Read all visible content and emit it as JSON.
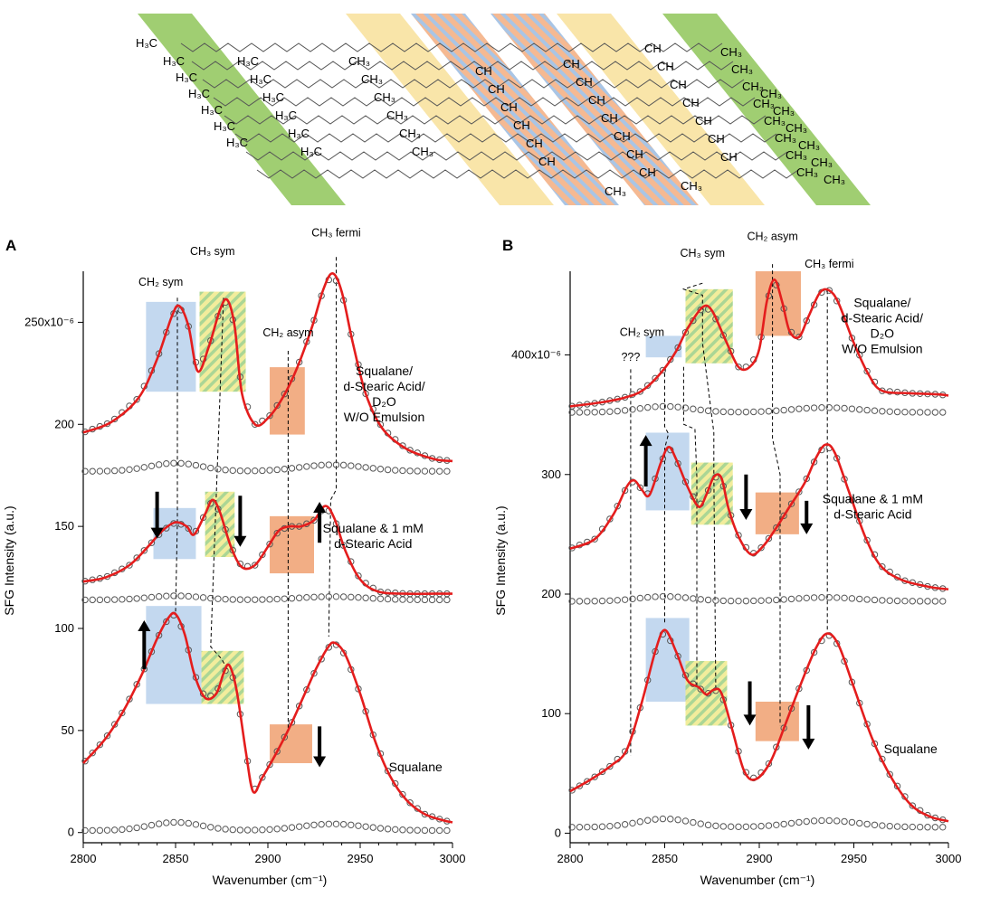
{
  "molecule": {
    "labels": {
      "h3c": "H₃C",
      "ch": "CH",
      "ch3": "CH₃"
    }
  },
  "colors": {
    "green": "#9bcb6a",
    "yellow": "#f9e4a4",
    "stripe_a": "#f4b58c",
    "stripe_b": "#a4c2e4",
    "blue_box": "#b8d1ec",
    "orange_box": "#f0a070",
    "hatch_yellow": "#f0ea8a",
    "hatch_green": "#9ccf82",
    "curve": "#e41d1d",
    "points": "#555555"
  },
  "chart_data": [
    {
      "panel": "A",
      "type": "line",
      "xlabel": "Wavenumber (cm⁻¹)",
      "ylabel": "SFG Intensity (a.u.)",
      "xlim": [
        2800,
        3000
      ],
      "ylim": [
        -5,
        275
      ],
      "x_ticks": [
        "2800",
        "2850",
        "2900",
        "2950",
        "3000"
      ],
      "y_ticks": [
        {
          "value": 0,
          "label": "0"
        },
        {
          "value": 50,
          "label": "50"
        },
        {
          "value": 100,
          "label": "100"
        },
        {
          "value": 150,
          "label": "150"
        },
        {
          "value": 200,
          "label": "200"
        },
        {
          "value": 250,
          "label": "250x10⁻⁶"
        }
      ],
      "band_labels": [
        {
          "text": "CH₂ sym",
          "x": 2842,
          "y": 268
        },
        {
          "text": "CH₃ sym",
          "x": 2870,
          "y": 283
        },
        {
          "text": "CH₂ asym",
          "x": 2911,
          "y": 243
        },
        {
          "text": "CH₃ fermi",
          "x": 2937,
          "y": 292
        }
      ],
      "series": [
        {
          "name": "Squalane/ d-Stearic Acid/ D2O W/O Emulsion",
          "label_lines": [
            "Squalane/",
            "d-Stearic Acid/",
            "D₂O",
            "W/O Emulsion"
          ],
          "label_pos": [
            2963,
            224
          ],
          "baseline": 177,
          "baseline_amp": 4,
          "curve": [
            [
              2800,
              196
            ],
            [
              2815,
              201
            ],
            [
              2830,
              213
            ],
            [
              2840,
              232
            ],
            [
              2848,
              253
            ],
            [
              2852,
              258
            ],
            [
              2857,
              248
            ],
            [
              2862,
              226
            ],
            [
              2868,
              238
            ],
            [
              2874,
              256
            ],
            [
              2878,
              261
            ],
            [
              2882,
              248
            ],
            [
              2886,
              215
            ],
            [
              2893,
              200
            ],
            [
              2900,
              203
            ],
            [
              2908,
              213
            ],
            [
              2916,
              228
            ],
            [
              2924,
              248
            ],
            [
              2930,
              266
            ],
            [
              2935,
              274
            ],
            [
              2940,
              265
            ],
            [
              2946,
              240
            ],
            [
              2953,
              215
            ],
            [
              2962,
              198
            ],
            [
              2975,
              188
            ],
            [
              2990,
              183
            ],
            [
              3000,
              182
            ]
          ]
        },
        {
          "name": "Squalane & 1 mM d-Stearic Acid",
          "label_lines": [
            "Squalane & 1 mM",
            "d-Stearic Acid"
          ],
          "label_pos": [
            2957,
            147
          ],
          "baseline": 114,
          "baseline_amp": 2,
          "curve": [
            [
              2800,
              123
            ],
            [
              2812,
              125
            ],
            [
              2825,
              131
            ],
            [
              2835,
              140
            ],
            [
              2843,
              148
            ],
            [
              2850,
              152
            ],
            [
              2856,
              150
            ],
            [
              2860,
              146
            ],
            [
              2866,
              156
            ],
            [
              2870,
              163
            ],
            [
              2874,
              157
            ],
            [
              2880,
              140
            ],
            [
              2886,
              130
            ],
            [
              2893,
              131
            ],
            [
              2900,
              140
            ],
            [
              2906,
              148
            ],
            [
              2912,
              150
            ],
            [
              2918,
              150
            ],
            [
              2925,
              153
            ],
            [
              2931,
              160
            ],
            [
              2936,
              154
            ],
            [
              2942,
              138
            ],
            [
              2950,
              124
            ],
            [
              2960,
              118
            ],
            [
              2975,
              117
            ],
            [
              2990,
              117
            ],
            [
              3000,
              117
            ]
          ]
        },
        {
          "name": "Squalane",
          "label_lines": [
            "Squalane"
          ],
          "label_pos": [
            2980,
            30
          ],
          "baseline": 1,
          "baseline_amp": 4,
          "curve": [
            [
              2800,
              34
            ],
            [
              2812,
              46
            ],
            [
              2822,
              60
            ],
            [
              2832,
              78
            ],
            [
              2840,
              95
            ],
            [
              2846,
              105
            ],
            [
              2850,
              107
            ],
            [
              2855,
              97
            ],
            [
              2860,
              78
            ],
            [
              2866,
              66
            ],
            [
              2872,
              68
            ],
            [
              2876,
              78
            ],
            [
              2879,
              82
            ],
            [
              2883,
              70
            ],
            [
              2888,
              40
            ],
            [
              2892,
              20
            ],
            [
              2897,
              27
            ],
            [
              2904,
              38
            ],
            [
              2912,
              52
            ],
            [
              2920,
              68
            ],
            [
              2926,
              80
            ],
            [
              2932,
              90
            ],
            [
              2936,
              93
            ],
            [
              2942,
              87
            ],
            [
              2950,
              68
            ],
            [
              2958,
              45
            ],
            [
              2966,
              28
            ],
            [
              2975,
              16
            ],
            [
              2985,
              9
            ],
            [
              2995,
              6
            ],
            [
              3000,
              5
            ]
          ]
        }
      ]
    },
    {
      "panel": "B",
      "type": "line",
      "xlabel": "Wavenumber (cm⁻¹)",
      "ylabel": "SFG Intensity (a.u.)",
      "xlim": [
        2800,
        3000
      ],
      "ylim": [
        -8,
        470
      ],
      "x_ticks": [
        "2800",
        "2850",
        "2900",
        "2950",
        "3000"
      ],
      "y_ticks": [
        {
          "value": 0,
          "label": "0"
        },
        {
          "value": 100,
          "label": "100"
        },
        {
          "value": 200,
          "label": "200"
        },
        {
          "value": 300,
          "label": "300"
        },
        {
          "value": 400,
          "label": "400x10⁻⁶"
        }
      ],
      "band_labels": [
        {
          "text": "???",
          "x": 2832,
          "y": 395
        },
        {
          "text": "CH₂ sym",
          "x": 2838,
          "y": 416
        },
        {
          "text": "CH₃ sym",
          "x": 2870,
          "y": 482
        },
        {
          "text": "CH₂ asym",
          "x": 2907,
          "y": 496
        },
        {
          "text": "CH₃ fermi",
          "x": 2937,
          "y": 473
        }
      ],
      "series": [
        {
          "name": "Squalane/ d-Stearic Acid/ D2O W/O Emulsion",
          "label_lines": [
            "Squalane/",
            "d-Stearic Acid/",
            "D₂O",
            "W/O Emulsion"
          ],
          "label_pos": [
            2965,
            440
          ],
          "baseline": 352,
          "baseline_amp": 5,
          "curve": [
            [
              2800,
              357
            ],
            [
              2815,
              360
            ],
            [
              2828,
              364
            ],
            [
              2838,
              370
            ],
            [
              2848,
              385
            ],
            [
              2856,
              403
            ],
            [
              2862,
              422
            ],
            [
              2870,
              440
            ],
            [
              2875,
              437
            ],
            [
              2882,
              413
            ],
            [
              2889,
              390
            ],
            [
              2895,
              390
            ],
            [
              2900,
              405
            ],
            [
              2904,
              445
            ],
            [
              2908,
              463
            ],
            [
              2912,
              445
            ],
            [
              2916,
              420
            ],
            [
              2921,
              415
            ],
            [
              2926,
              432
            ],
            [
              2932,
              452
            ],
            [
              2937,
              454
            ],
            [
              2942,
              443
            ],
            [
              2950,
              410
            ],
            [
              2958,
              383
            ],
            [
              2965,
              370
            ],
            [
              2980,
              368
            ],
            [
              2995,
              367
            ],
            [
              3000,
              366
            ]
          ]
        },
        {
          "name": "Squalane & 1 mM d-Stearic Acid",
          "label_lines": [
            "Squalane & 1 mM",
            "d-Stearic Acid"
          ],
          "label_pos": [
            2960,
            276
          ],
          "baseline": 194,
          "baseline_amp": 4,
          "curve": [
            [
              2800,
              238
            ],
            [
              2813,
              246
            ],
            [
              2823,
              267
            ],
            [
              2830,
              290
            ],
            [
              2834,
              295
            ],
            [
              2838,
              287
            ],
            [
              2842,
              283
            ],
            [
              2848,
              310
            ],
            [
              2852,
              323
            ],
            [
              2856,
              313
            ],
            [
              2862,
              290
            ],
            [
              2868,
              273
            ],
            [
              2872,
              283
            ],
            [
              2876,
              298
            ],
            [
              2880,
              297
            ],
            [
              2884,
              270
            ],
            [
              2890,
              245
            ],
            [
              2896,
              233
            ],
            [
              2902,
              240
            ],
            [
              2908,
              253
            ],
            [
              2916,
              273
            ],
            [
              2924,
              293
            ],
            [
              2930,
              314
            ],
            [
              2935,
              325
            ],
            [
              2940,
              318
            ],
            [
              2948,
              283
            ],
            [
              2956,
              248
            ],
            [
              2964,
              224
            ],
            [
              2975,
              212
            ],
            [
              2990,
              206
            ],
            [
              3000,
              204
            ]
          ]
        },
        {
          "name": "Squalane",
          "label_lines": [
            "Squalane"
          ],
          "label_pos": [
            2980,
            67
          ],
          "baseline": 5,
          "baseline_amp": 7,
          "curve": [
            [
              2800,
              35
            ],
            [
              2812,
              46
            ],
            [
              2822,
              57
            ],
            [
              2830,
              70
            ],
            [
              2838,
              110
            ],
            [
              2845,
              152
            ],
            [
              2850,
              170
            ],
            [
              2856,
              152
            ],
            [
              2862,
              128
            ],
            [
              2868,
              122
            ],
            [
              2872,
              116
            ],
            [
              2876,
              120
            ],
            [
              2880,
              117
            ],
            [
              2886,
              85
            ],
            [
              2892,
              52
            ],
            [
              2898,
              45
            ],
            [
              2906,
              60
            ],
            [
              2914,
              92
            ],
            [
              2922,
              125
            ],
            [
              2930,
              155
            ],
            [
              2936,
              167
            ],
            [
              2942,
              157
            ],
            [
              2950,
              122
            ],
            [
              2960,
              78
            ],
            [
              2970,
              46
            ],
            [
              2980,
              24
            ],
            [
              2990,
              14
            ],
            [
              3000,
              10
            ]
          ]
        }
      ]
    }
  ]
}
